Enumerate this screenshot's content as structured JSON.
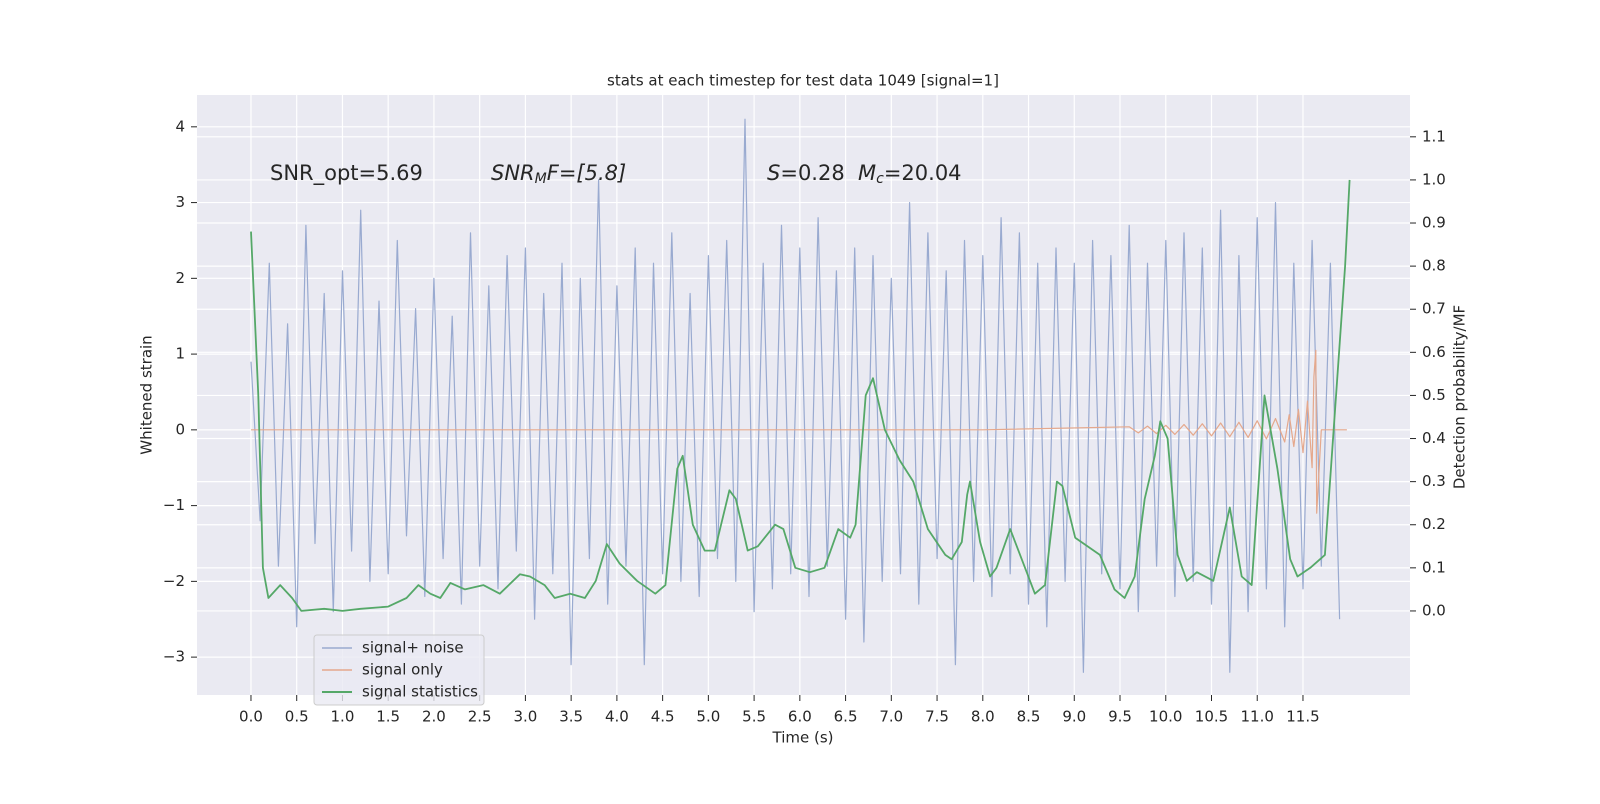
{
  "chart_data": {
    "type": "line",
    "title": "stats at each timestep for test data 1049 [signal=1]",
    "x_label": "Time (s)",
    "y_label": "Whitened strain",
    "y2_label": "Detection probability/MF",
    "annotations": [
      {
        "text": "SNR_opt=5.69"
      },
      {
        "parts": [
          "SNR",
          "M",
          "F=[5.8]"
        ]
      },
      {
        "parts": [
          "S",
          "=0.28",
          "M",
          "c",
          "=20.04"
        ]
      }
    ],
    "xlim": [
      -0.59,
      12.67
    ],
    "ylim": [
      -3.5,
      4.42
    ],
    "y2lim": [
      -0.195,
      1.197
    ],
    "grid": true,
    "xticks": [
      {
        "value": 0,
        "label": "0.0"
      },
      0.5,
      {
        "value": 1,
        "label": "1.0"
      },
      1.5,
      {
        "value": 2,
        "label": "2.0"
      },
      2.5,
      {
        "value": 3,
        "label": "3.0"
      },
      3.5,
      {
        "value": 4,
        "label": "4.0"
      },
      4.5,
      {
        "value": 5,
        "label": "5.0"
      },
      5.5,
      {
        "value": 6,
        "label": "6.0"
      },
      6.5,
      {
        "value": 7,
        "label": "7.0"
      },
      7.5,
      {
        "value": 8,
        "label": "8.0"
      },
      8.5,
      {
        "value": 9,
        "label": "9.0"
      },
      9.5,
      {
        "value": 10,
        "label": "10.0"
      },
      10.5,
      {
        "value": 11,
        "label": "11.0"
      },
      11.5
    ],
    "yticks": [
      {
        "value": -3,
        "label": "−3"
      },
      {
        "value": -2,
        "label": "−2"
      },
      {
        "value": -1,
        "label": "−1"
      },
      0,
      1,
      2,
      3,
      4
    ],
    "y2ticks": [
      {
        "value": 0,
        "label": "0.0"
      },
      0.1,
      0.2,
      0.3,
      0.4,
      0.5,
      0.6,
      0.7,
      0.8,
      0.9,
      {
        "value": 1,
        "label": "1.0"
      },
      1.1
    ],
    "series": [
      {
        "name": "signal+ noise",
        "color": "#99aad0",
        "x": [
          0.0,
          0.1,
          0.2,
          0.3,
          0.4,
          0.5,
          0.6,
          0.7,
          0.8,
          0.9,
          1.0,
          1.1,
          1.2,
          1.3,
          1.4,
          1.5,
          1.6,
          1.7,
          1.8,
          1.9,
          2.0,
          2.1,
          2.2,
          2.3,
          2.4,
          2.5,
          2.6,
          2.7,
          2.8,
          2.9,
          3.0,
          3.1,
          3.2,
          3.3,
          3.4,
          3.5,
          3.6,
          3.7,
          3.8,
          3.9,
          4.0,
          4.1,
          4.2,
          4.3,
          4.4,
          4.5,
          4.6,
          4.7,
          4.8,
          4.9,
          5.0,
          5.1,
          5.2,
          5.3,
          5.4,
          5.5,
          5.6,
          5.7,
          5.8,
          5.9,
          6.0,
          6.1,
          6.2,
          6.3,
          6.4,
          6.5,
          6.6,
          6.7,
          6.8,
          6.9,
          7.0,
          7.1,
          7.2,
          7.3,
          7.4,
          7.5,
          7.6,
          7.7,
          7.8,
          7.9,
          8.0,
          8.1,
          8.2,
          8.3,
          8.4,
          8.5,
          8.6,
          8.7,
          8.8,
          8.9,
          9.0,
          9.1,
          9.2,
          9.3,
          9.4,
          9.5,
          9.6,
          9.7,
          9.8,
          9.9,
          10.0,
          10.1,
          10.2,
          10.3,
          10.4,
          10.5,
          10.6,
          10.7,
          10.8,
          10.9,
          11.0,
          11.1,
          11.2,
          11.3,
          11.4,
          11.5,
          11.6,
          11.7,
          11.8,
          11.9
        ],
        "values": [
          0.9,
          -1.2,
          2.2,
          -1.8,
          1.4,
          -2.6,
          2.7,
          -1.5,
          1.8,
          -2.4,
          2.1,
          -1.6,
          2.9,
          -2.0,
          1.7,
          -1.9,
          2.5,
          -1.4,
          1.6,
          -2.2,
          2.0,
          -1.7,
          1.5,
          -2.3,
          2.6,
          -1.8,
          1.9,
          -2.1,
          2.3,
          -1.6,
          2.4,
          -2.5,
          1.8,
          -1.9,
          2.2,
          -3.1,
          2.0,
          -1.7,
          3.3,
          -2.3,
          1.9,
          -1.8,
          2.4,
          -3.1,
          2.2,
          -1.9,
          2.6,
          -2.0,
          1.8,
          -2.2,
          2.3,
          -1.7,
          2.5,
          -2.0,
          4.1,
          -2.4,
          2.2,
          -2.1,
          2.7,
          -1.9,
          2.4,
          -2.2,
          2.8,
          -1.8,
          2.1,
          -2.5,
          2.4,
          -2.8,
          2.3,
          -2.0,
          2.0,
          -1.9,
          3.0,
          -2.3,
          2.6,
          -1.7,
          2.1,
          -3.1,
          2.5,
          -2.0,
          2.3,
          -2.2,
          2.8,
          -1.9,
          2.6,
          -2.3,
          2.2,
          -2.6,
          2.4,
          -2.0,
          2.2,
          -3.2,
          2.5,
          -1.9,
          2.3,
          -2.1,
          2.7,
          -2.4,
          2.2,
          -1.8,
          2.5,
          -2.2,
          2.6,
          -2.0,
          2.4,
          -2.3,
          2.9,
          -3.2,
          2.3,
          -2.4,
          2.8,
          -2.1,
          3.0,
          -2.6,
          2.2,
          -2.1,
          2.5,
          -1.8,
          2.2,
          -2.5
        ]
      },
      {
        "name": "signal only",
        "color": "#e5a88c",
        "x": [
          0,
          8,
          9.6,
          9.7,
          9.8,
          9.9,
          10.0,
          10.1,
          10.2,
          10.3,
          10.4,
          10.5,
          10.6,
          10.7,
          10.8,
          10.9,
          11.0,
          11.1,
          11.2,
          11.3,
          11.35,
          11.4,
          11.45,
          11.5,
          11.55,
          11.6,
          11.62,
          11.64,
          11.65,
          11.7,
          11.98
        ],
        "values": [
          0,
          0,
          0.04,
          -0.04,
          0.05,
          -0.05,
          0.06,
          -0.06,
          0.07,
          -0.07,
          0.08,
          -0.08,
          0.09,
          -0.09,
          0.1,
          -0.1,
          0.12,
          -0.12,
          0.15,
          -0.16,
          0.2,
          -0.22,
          0.27,
          -0.3,
          0.38,
          -0.5,
          0.7,
          1.05,
          -1.1,
          0,
          0
        ]
      },
      {
        "name": "signal statistics",
        "color": "#55a868",
        "axis": "y2",
        "x": [
          0,
          0.08,
          0.13,
          0.19,
          0.32,
          0.45,
          0.55,
          0.8,
          1.0,
          1.2,
          1.5,
          1.7,
          1.83,
          1.96,
          2.07,
          2.18,
          2.34,
          2.54,
          2.72,
          2.94,
          3.05,
          3.21,
          3.32,
          3.49,
          3.65,
          3.77,
          3.89,
          4.03,
          4.22,
          4.42,
          4.53,
          4.66,
          4.72,
          4.83,
          4.96,
          5.07,
          5.23,
          5.3,
          5.43,
          5.54,
          5.73,
          5.82,
          5.95,
          6.11,
          6.27,
          6.42,
          6.55,
          6.61,
          6.72,
          6.8,
          6.93,
          7.09,
          7.24,
          7.4,
          7.59,
          7.66,
          7.77,
          7.83,
          7.86,
          7.97,
          8.08,
          8.15,
          8.3,
          8.48,
          8.57,
          8.68,
          8.81,
          8.87,
          9.01,
          9.28,
          9.44,
          9.55,
          9.66,
          9.77,
          9.88,
          9.94,
          10.02,
          10.13,
          10.23,
          10.34,
          10.52,
          10.7,
          10.83,
          10.94,
          11.08,
          11.22,
          11.36,
          11.44,
          11.58,
          11.74,
          11.96,
          12.01
        ],
        "values": [
          0.88,
          0.5,
          0.1,
          0.03,
          0.06,
          0.03,
          0.0,
          0.005,
          0.0,
          0.005,
          0.01,
          0.03,
          0.06,
          0.04,
          0.03,
          0.065,
          0.05,
          0.06,
          0.04,
          0.085,
          0.08,
          0.06,
          0.03,
          0.04,
          0.03,
          0.07,
          0.155,
          0.11,
          0.07,
          0.04,
          0.06,
          0.33,
          0.36,
          0.2,
          0.14,
          0.14,
          0.28,
          0.26,
          0.14,
          0.15,
          0.2,
          0.19,
          0.1,
          0.09,
          0.1,
          0.19,
          0.17,
          0.2,
          0.5,
          0.54,
          0.42,
          0.35,
          0.3,
          0.19,
          0.13,
          0.12,
          0.16,
          0.27,
          0.3,
          0.16,
          0.08,
          0.1,
          0.19,
          0.09,
          0.04,
          0.06,
          0.3,
          0.29,
          0.17,
          0.13,
          0.05,
          0.03,
          0.08,
          0.26,
          0.36,
          0.44,
          0.4,
          0.13,
          0.07,
          0.09,
          0.07,
          0.24,
          0.08,
          0.06,
          0.5,
          0.33,
          0.12,
          0.08,
          0.1,
          0.13,
          0.8,
          1.0
        ]
      }
    ]
  }
}
